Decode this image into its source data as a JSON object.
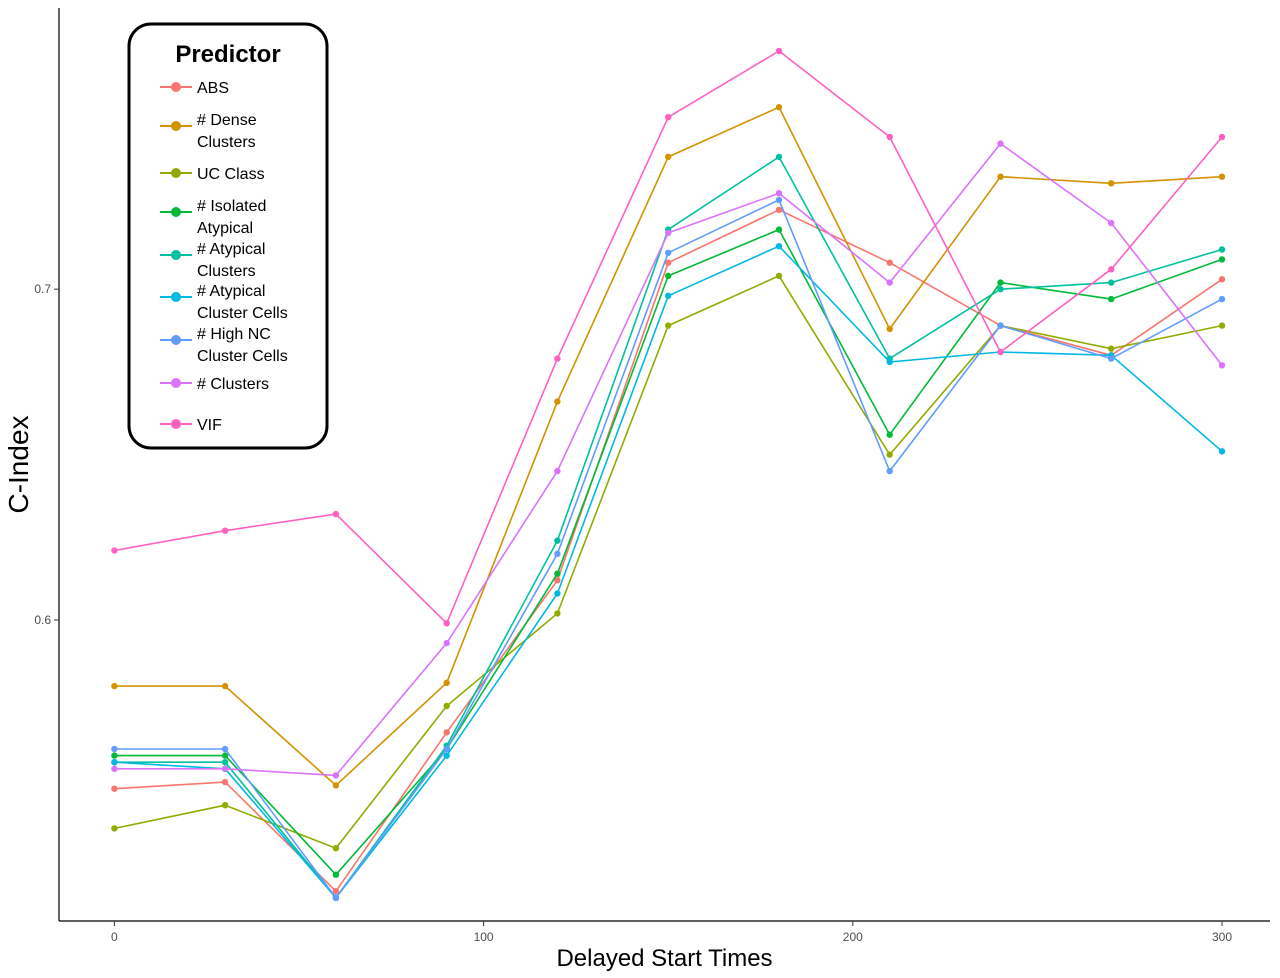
{
  "chart_data": {
    "type": "line",
    "title": "",
    "xlabel": "Delayed Start Times",
    "ylabel": "C-Index",
    "xlim": [
      -15,
      313
    ],
    "ylim": [
      0.509,
      0.785
    ],
    "x_ticks": [
      0,
      100,
      200,
      300
    ],
    "y_ticks": [
      0.6,
      0.7
    ],
    "y_tick_labels": [
      "0.6",
      "0.7"
    ],
    "grid": false,
    "legend": {
      "title": "Predictor",
      "position": "top-left"
    },
    "x": [
      0,
      30,
      60,
      90,
      120,
      150,
      180,
      210,
      240,
      270,
      300
    ],
    "series": [
      {
        "name": "ABS",
        "label_lines": [
          "ABS"
        ],
        "color": "#F8766D",
        "values": [
          0.549,
          0.551,
          0.518,
          0.566,
          0.612,
          0.708,
          0.724,
          0.708,
          0.689,
          0.68,
          0.703
        ]
      },
      {
        "name": "# Dense Clusters",
        "label_lines": [
          "# Dense",
          "Clusters"
        ],
        "color": "#D39200",
        "values": [
          0.58,
          0.58,
          0.55,
          0.581,
          0.666,
          0.74,
          0.755,
          0.688,
          0.734,
          0.732,
          0.734
        ]
      },
      {
        "name": "UC Class",
        "label_lines": [
          "UC Class"
        ],
        "color": "#93AA00",
        "values": [
          0.537,
          0.544,
          0.531,
          0.574,
          0.602,
          0.689,
          0.704,
          0.65,
          0.689,
          0.682,
          0.689
        ]
      },
      {
        "name": "# Isolated Atypical",
        "label_lines": [
          "# Isolated",
          "Atypical"
        ],
        "color": "#00BA38",
        "values": [
          0.559,
          0.559,
          0.523,
          0.561,
          0.614,
          0.704,
          0.718,
          0.656,
          0.702,
          0.697,
          0.709
        ]
      },
      {
        "name": "# Atypical Clusters",
        "label_lines": [
          "# Atypical",
          "Clusters"
        ],
        "color": "#00C19F",
        "values": [
          0.557,
          0.557,
          0.516,
          0.562,
          0.624,
          0.718,
          0.74,
          0.679,
          0.7,
          0.702,
          0.712
        ]
      },
      {
        "name": "# Atypical Cluster Cells",
        "label_lines": [
          "# Atypical",
          "Cluster Cells"
        ],
        "color": "#00B9E3",
        "values": [
          0.557,
          0.555,
          0.516,
          0.559,
          0.608,
          0.698,
          0.713,
          0.678,
          0.681,
          0.68,
          0.651
        ]
      },
      {
        "name": "# High NC Cluster Cells",
        "label_lines": [
          "# High NC",
          "Cluster Cells"
        ],
        "color": "#619CFF",
        "values": [
          0.561,
          0.561,
          0.516,
          0.561,
          0.62,
          0.711,
          0.727,
          0.645,
          0.689,
          0.679,
          0.697
        ]
      },
      {
        "name": "# Clusters",
        "label_lines": [
          "# Clusters"
        ],
        "color": "#DB72FB",
        "values": [
          0.555,
          0.555,
          0.553,
          0.593,
          0.645,
          0.717,
          0.729,
          0.702,
          0.744,
          0.72,
          0.677
        ]
      },
      {
        "name": "VIF",
        "label_lines": [
          "VIF"
        ],
        "color": "#FF61C3",
        "values": [
          0.621,
          0.627,
          0.632,
          0.599,
          0.679,
          0.752,
          0.772,
          0.746,
          0.681,
          0.706,
          0.746
        ]
      }
    ]
  }
}
